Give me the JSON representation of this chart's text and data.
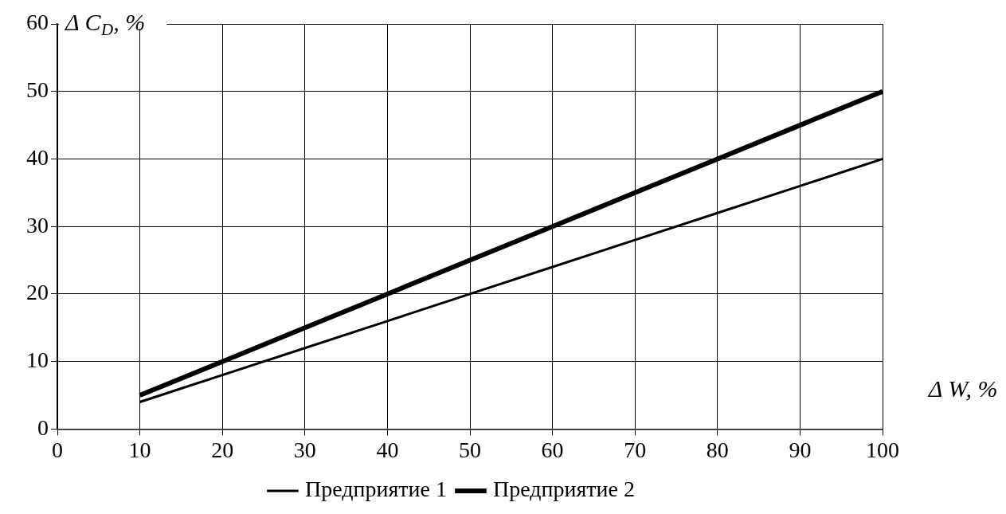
{
  "chart_data": {
    "type": "line",
    "xlabel": "Δ W, %",
    "ylabel": "Δ C$_{D}$, %",
    "x": [
      10,
      20,
      30,
      40,
      50,
      60,
      70,
      80,
      90,
      100
    ],
    "series": [
      {
        "name": "Предприятие 1",
        "color": "#000000",
        "values": [
          4,
          8,
          12,
          16,
          20,
          24,
          28,
          32,
          36,
          40
        ]
      },
      {
        "name": "Предприятие 2",
        "color": "#000000",
        "values": [
          5,
          10,
          15,
          20,
          25,
          30,
          35,
          40,
          45,
          50
        ]
      }
    ],
    "xlim": [
      0,
      100
    ],
    "xticks": [
      0,
      10,
      20,
      30,
      40,
      50,
      60,
      70,
      80,
      90,
      100
    ],
    "ylim": [
      0,
      60
    ],
    "yticks": [
      0,
      10,
      20,
      30,
      40,
      50,
      60
    ],
    "grid": true,
    "legend": "bottom",
    "marker": "none",
    "line_style": "solid"
  }
}
